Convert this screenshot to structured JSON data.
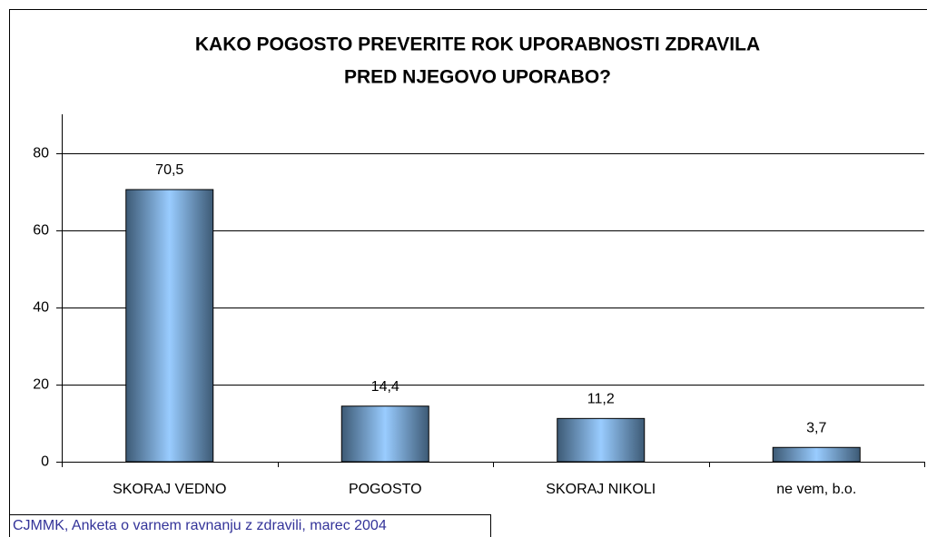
{
  "chart_data": {
    "type": "bar",
    "title": [
      "KAKO POGOSTO PREVERITE ROK UPORABNOSTI ZDRAVILA",
      "PRED NJEGOVO UPORABO?"
    ],
    "categories": [
      "SKORAJ VEDNO",
      "POGOSTO",
      "SKORAJ NIKOLI",
      "ne vem, b.o."
    ],
    "values": [
      70.5,
      14.4,
      11.2,
      3.7
    ],
    "value_labels": [
      "70,5",
      "14,4",
      "11,2",
      "3,7"
    ],
    "color": "#99ccff",
    "ylim": [
      0,
      90
    ],
    "yticks": [
      0,
      20,
      40,
      60,
      80
    ],
    "grid": true,
    "source": "CJMMK, Anketa o varnem ravnanju z zdravili, marec 2004"
  }
}
